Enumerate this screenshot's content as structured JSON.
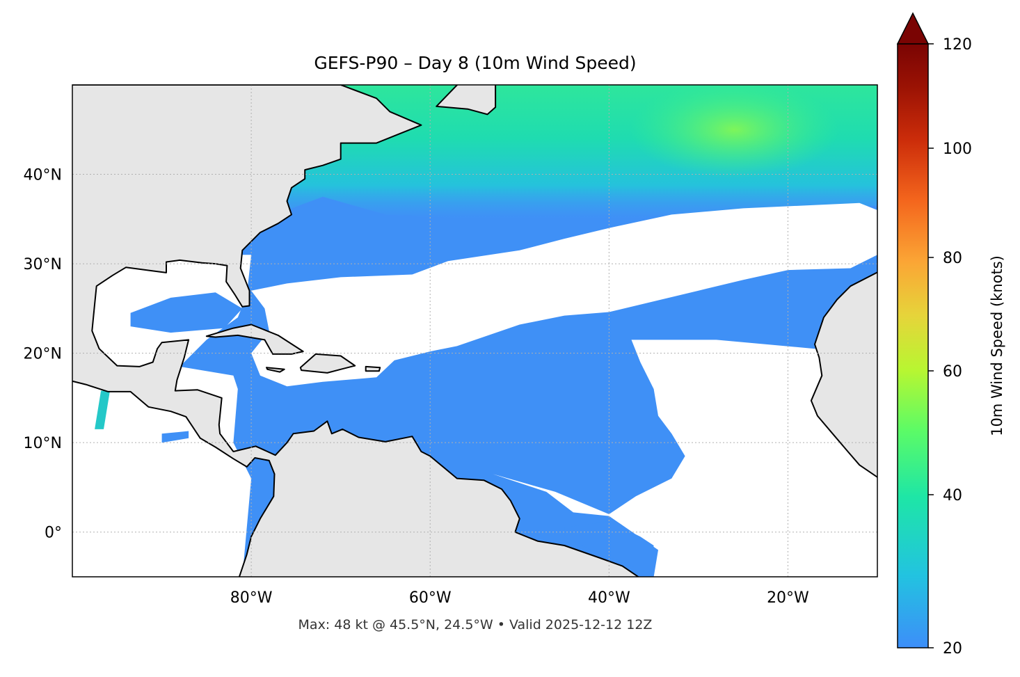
{
  "title": "GEFS-P90 – Day 8 (10m Wind Speed)",
  "footer": "Max: 48 kt @ 45.5°N, 24.5°W • Valid 2025-12-12 12Z",
  "map": {
    "extent": {
      "lon": [
        -100,
        -10
      ],
      "lat": [
        -5,
        50
      ]
    },
    "x_ticks": [
      "80°W",
      "60°W",
      "40°W",
      "20°W"
    ],
    "x_tick_values": [
      -80,
      -60,
      -40,
      -20
    ],
    "y_ticks": [
      "40°N",
      "30°N",
      "20°N",
      "10°N",
      "0°"
    ],
    "y_tick_values": [
      40,
      30,
      20,
      10,
      0
    ],
    "gridlines": true,
    "land_color": "#e6e6e6",
    "max_point": {
      "lat": 45.5,
      "lon": -24.5,
      "value_kt": 48
    }
  },
  "colorbar": {
    "label": "10m Wind Speed (knots)",
    "ticks": [
      "120",
      "100",
      "80",
      "60",
      "40",
      "20"
    ],
    "range": [
      20,
      120
    ],
    "extend": "max",
    "colormap": [
      "#3d8ef9",
      "#22c3e0",
      "#1ee6a6",
      "#5cfb66",
      "#b8f631",
      "#e6d43a",
      "#fba535",
      "#f4661d",
      "#cc2d0a",
      "#9a1204",
      "#7a0403"
    ]
  }
}
